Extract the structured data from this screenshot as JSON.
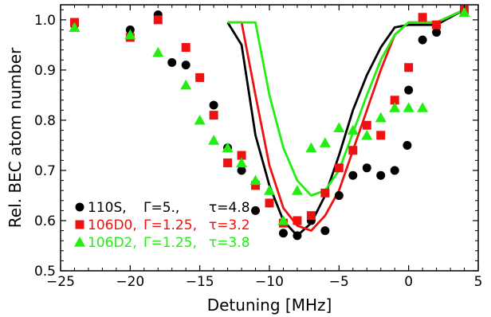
{
  "chart_data": {
    "type": "scatter",
    "xlabel": "Detuning [MHz]",
    "ylabel": "Rel. BEC atom number",
    "xlim": [
      -25,
      5
    ],
    "ylim": [
      0.5,
      1.03
    ],
    "xticks": [
      -25,
      -20,
      -15,
      -10,
      -5,
      0,
      5
    ],
    "yticks": [
      0.5,
      0.6,
      0.7,
      0.8,
      0.9,
      1.0
    ],
    "yticklabels": [
      "0.5",
      "0.6",
      "0.7",
      "0.8",
      "0.9",
      "1.0"
    ],
    "legend_position": "bottom-left",
    "series": [
      {
        "name": "110S, Γ=5., τ=4.8",
        "legend_parts": [
          "110S,",
          "Γ=5.,",
          "τ=4.8"
        ],
        "marker": "circle",
        "color": "#000000",
        "points": [
          [
            -24,
            0.99
          ],
          [
            -20,
            0.98
          ],
          [
            -18,
            1.01
          ],
          [
            -17,
            0.915
          ],
          [
            -16,
            0.91
          ],
          [
            -15,
            0.885
          ],
          [
            -14,
            0.83
          ],
          [
            -13,
            0.745
          ],
          [
            -12,
            0.7
          ],
          [
            -11,
            0.62
          ],
          [
            -10,
            0.635
          ],
          [
            -9,
            0.575
          ],
          [
            -8,
            0.57
          ],
          [
            -7,
            0.6
          ],
          [
            -6,
            0.58
          ],
          [
            -5,
            0.65
          ],
          [
            -4,
            0.69
          ],
          [
            -3,
            0.705
          ],
          [
            -2,
            0.69
          ],
          [
            -1,
            0.7
          ],
          [
            0,
            0.86
          ],
          [
            -0.1,
            0.75
          ],
          [
            1,
            0.96
          ],
          [
            2,
            0.975
          ],
          [
            4,
            1.02
          ]
        ],
        "fit": [
          [
            -13,
            0.995
          ],
          [
            -12,
            0.95
          ],
          [
            -11,
            0.77
          ],
          [
            -10,
            0.67
          ],
          [
            -9,
            0.6
          ],
          [
            -8,
            0.57
          ],
          [
            -7,
            0.595
          ],
          [
            -6,
            0.65
          ],
          [
            -5,
            0.73
          ],
          [
            -4,
            0.82
          ],
          [
            -3,
            0.89
          ],
          [
            -2,
            0.945
          ],
          [
            -1,
            0.985
          ],
          [
            0,
            0.99
          ],
          [
            2,
            0.99
          ],
          [
            4,
            1.02
          ]
        ]
      },
      {
        "name": "106D0, Γ=1.25, τ=3.2",
        "legend_parts": [
          "106D0,",
          "Γ=1.25,",
          "τ=3.2"
        ],
        "marker": "square",
        "color": "#ee1111",
        "points": [
          [
            -24,
            0.995
          ],
          [
            -20,
            0.965
          ],
          [
            -18,
            1.0
          ],
          [
            -16,
            0.945
          ],
          [
            -15,
            0.885
          ],
          [
            -14,
            0.81
          ],
          [
            -13,
            0.715
          ],
          [
            -12,
            0.73
          ],
          [
            -11,
            0.67
          ],
          [
            -10,
            0.635
          ],
          [
            -9,
            0.595
          ],
          [
            -8,
            0.6
          ],
          [
            -7,
            0.61
          ],
          [
            -6,
            0.655
          ],
          [
            -5,
            0.705
          ],
          [
            -4,
            0.74
          ],
          [
            -3,
            0.79
          ],
          [
            -2,
            0.77
          ],
          [
            -1,
            0.84
          ],
          [
            0,
            0.905
          ],
          [
            1,
            1.005
          ],
          [
            2,
            0.99
          ],
          [
            4,
            1.02
          ]
        ],
        "fit": [
          [
            -13,
            0.995
          ],
          [
            -12,
            0.995
          ],
          [
            -11,
            0.85
          ],
          [
            -10,
            0.71
          ],
          [
            -9,
            0.625
          ],
          [
            -8,
            0.59
          ],
          [
            -7,
            0.58
          ],
          [
            -6,
            0.61
          ],
          [
            -5,
            0.66
          ],
          [
            -4,
            0.74
          ],
          [
            -3,
            0.82
          ],
          [
            -2,
            0.9
          ],
          [
            -1,
            0.97
          ],
          [
            0,
            0.995
          ],
          [
            2,
            0.995
          ],
          [
            4,
            1.02
          ]
        ]
      },
      {
        "name": "106D2, Γ=1.25, τ=3.8",
        "legend_parts": [
          "106D2,",
          "Γ=1.25,",
          "τ=3.8"
        ],
        "marker": "triangle",
        "color": "#22ee11",
        "points": [
          [
            -24,
            0.985
          ],
          [
            -20,
            0.97
          ],
          [
            -18,
            0.935
          ],
          [
            -16,
            0.87
          ],
          [
            -15,
            0.8
          ],
          [
            -14,
            0.76
          ],
          [
            -13,
            0.745
          ],
          [
            -12,
            0.715
          ],
          [
            -11,
            0.68
          ],
          [
            -10,
            0.66
          ],
          [
            -9,
            0.6
          ],
          [
            -8,
            0.66
          ],
          [
            -7,
            0.745
          ],
          [
            -6,
            0.755
          ],
          [
            -5,
            0.785
          ],
          [
            -4,
            0.78
          ],
          [
            -3,
            0.77
          ],
          [
            -2,
            0.805
          ],
          [
            -1,
            0.825
          ],
          [
            0,
            0.825
          ],
          [
            1,
            0.825
          ],
          [
            4,
            1.015
          ]
        ],
        "fit": [
          [
            -13,
            0.995
          ],
          [
            -11,
            0.995
          ],
          [
            -10,
            0.85
          ],
          [
            -9,
            0.745
          ],
          [
            -8,
            0.68
          ],
          [
            -7,
            0.65
          ],
          [
            -6,
            0.66
          ],
          [
            -5,
            0.7
          ],
          [
            -4,
            0.775
          ],
          [
            -3,
            0.85
          ],
          [
            -2,
            0.92
          ],
          [
            -1,
            0.97
          ],
          [
            0,
            0.995
          ],
          [
            2,
            0.995
          ],
          [
            4,
            1.02
          ]
        ]
      }
    ]
  }
}
